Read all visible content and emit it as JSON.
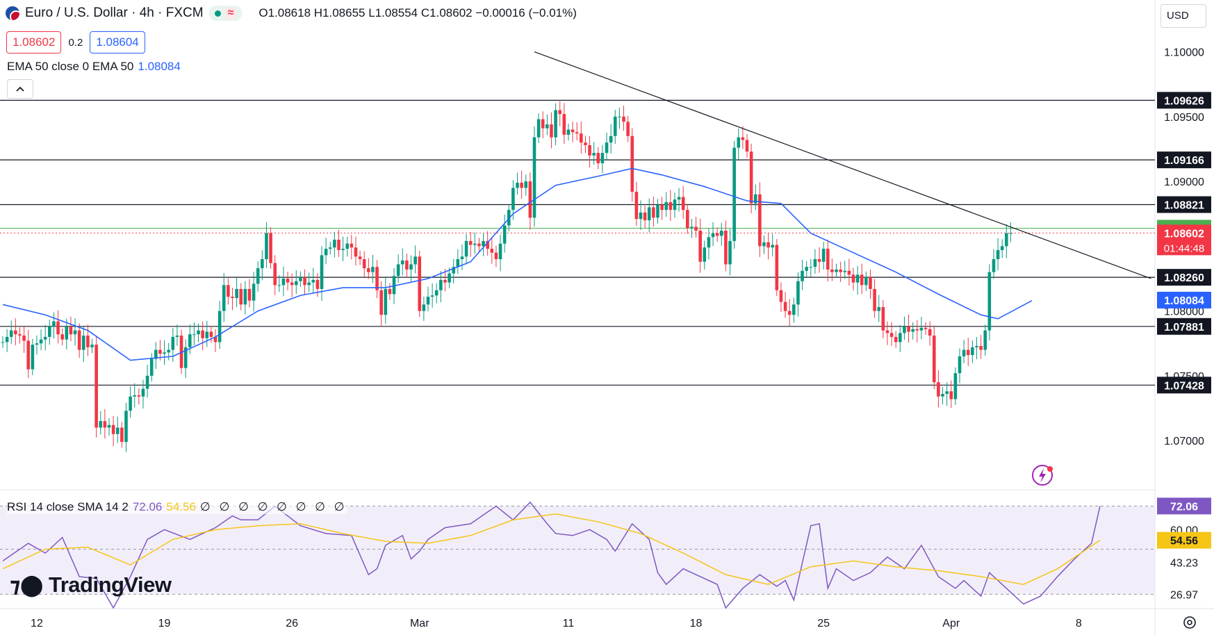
{
  "header": {
    "symbol": "Euro / U.S. Dollar · 4h · FXCM",
    "open": "O1.08618",
    "high": "H1.08655",
    "low": "L1.08554",
    "close": "C1.08602",
    "change": "−0.00016 (−0.01%)"
  },
  "quotes": {
    "sell": "1.08602",
    "spread": "0.2",
    "buy": "1.08604"
  },
  "ema_legend": {
    "label": "EMA 50 close 0 EMA 50",
    "value": "1.08084"
  },
  "currency": "USD",
  "rsi_legend": {
    "label": "RSI 14 close SMA 14 2",
    "rsi": "72.06",
    "sma": "54.56",
    "extra": "∅ ∅ ∅ ∅ ∅ ∅ ∅ ∅"
  },
  "brand": "TradingView",
  "colors": {
    "up": "#089981",
    "down": "#f23645",
    "ema": "#2962ff",
    "rsi": "#7e57c2",
    "rsi_sma": "#f5c518"
  },
  "chart_data": {
    "type": "candlestick",
    "ylim": [
      1.0662,
      1.104
    ],
    "price_ticks": [
      "1.10000",
      "1.09500",
      "1.09000",
      "1.08500",
      "1.08000",
      "1.07500",
      "1.07000"
    ],
    "x_ticks": [
      {
        "label": "12",
        "i": 8
      },
      {
        "label": "19",
        "i": 38
      },
      {
        "label": "26",
        "i": 68
      },
      {
        "label": "Mar",
        "i": 98
      },
      {
        "label": "11",
        "i": 133
      },
      {
        "label": "18",
        "i": 163
      },
      {
        "label": "25",
        "i": 193
      },
      {
        "label": "Apr",
        "i": 223
      },
      {
        "label": "8",
        "i": 253
      }
    ],
    "closes": [
      1.0776,
      1.078,
      1.0785,
      1.0782,
      1.0781,
      1.0777,
      1.0755,
      1.0774,
      1.0775,
      1.0778,
      1.078,
      1.0788,
      1.0792,
      1.0782,
      1.0778,
      1.0788,
      1.0782,
      1.0785,
      1.077,
      1.0781,
      1.0772,
      1.0774,
      1.071,
      1.0715,
      1.071,
      1.0712,
      1.0705,
      1.071,
      1.0699,
      1.0723,
      1.0734,
      1.0735,
      1.0734,
      1.074,
      1.075,
      1.0763,
      1.077,
      1.0767,
      1.0768,
      1.077,
      1.078,
      1.0781,
      1.0756,
      1.0772,
      1.0782,
      1.0782,
      1.0785,
      1.0779,
      1.0784,
      1.078,
      1.0776,
      1.08,
      1.082,
      1.0811,
      1.081,
      1.0817,
      1.0805,
      1.0817,
      1.0808,
      1.0821,
      1.0833,
      1.084,
      1.086,
      1.0837,
      1.082,
      1.082,
      1.0825,
      1.0822,
      1.082,
      1.0823,
      1.0826,
      1.082,
      1.0822,
      1.0824,
      1.0817,
      1.0843,
      1.0848,
      1.0849,
      1.0855,
      1.0847,
      1.0848,
      1.0852,
      1.0849,
      1.0842,
      1.084,
      1.0833,
      1.083,
      1.0834,
      1.0816,
      1.0797,
      1.0817,
      1.0813,
      1.0827,
      1.0836,
      1.0839,
      1.0832,
      1.0836,
      1.0842,
      1.08,
      1.0805,
      1.0811,
      1.0812,
      1.0816,
      1.0824,
      1.0822,
      1.0829,
      1.0834,
      1.084,
      1.0842,
      1.0854,
      1.0851,
      1.0852,
      1.085,
      1.0854,
      1.0848,
      1.0845,
      1.084,
      1.0852,
      1.0866,
      1.0878,
      1.0895,
      1.0899,
      1.0895,
      1.09,
      1.0872,
      1.0934,
      1.0948,
      1.0941,
      1.0944,
      1.0934,
      1.0955,
      1.0952,
      1.0936,
      1.094,
      1.0938,
      1.0937,
      1.093,
      1.0928,
      1.092,
      1.0922,
      1.0914,
      1.0922,
      1.093,
      1.0935,
      1.095,
      1.095,
      1.0946,
      1.0935,
      1.0892,
      1.0871,
      1.0876,
      1.087,
      1.088,
      1.0872,
      1.0882,
      1.0878,
      1.0884,
      1.0878,
      1.0886,
      1.0888,
      1.0878,
      1.0864,
      1.0865,
      1.0862,
      1.0838,
      1.0849,
      1.0857,
      1.086,
      1.0858,
      1.0862,
      1.0836,
      1.0854,
      1.0926,
      1.0934,
      1.0932,
      1.0923,
      1.0883,
      1.089,
      1.085,
      1.0853,
      1.0849,
      1.0851,
      1.0816,
      1.0807,
      1.08,
      1.0797,
      1.0805,
      1.0823,
      1.0831,
      1.0834,
      1.0834,
      1.084,
      1.0838,
      1.0848,
      1.0832,
      1.083,
      1.0832,
      1.083,
      1.0831,
      1.0828,
      1.0822,
      1.0828,
      1.082,
      1.0826,
      1.0817,
      1.08,
      1.0803,
      1.0785,
      1.0783,
      1.078,
      1.0776,
      1.0783,
      1.0788,
      1.0784,
      1.0786,
      1.0785,
      1.0787,
      1.0786,
      1.0781,
      1.0745,
      1.0734,
      1.0736,
      1.0738,
      1.0732,
      1.0752,
      1.0765,
      1.077,
      1.0766,
      1.0772,
      1.0773,
      1.077,
      1.0785,
      1.083,
      1.084,
      1.0847,
      1.085,
      1.086,
      1.086
    ],
    "ema": [
      {
        "i": 0,
        "v": 1.0805
      },
      {
        "i": 10,
        "v": 1.0797
      },
      {
        "i": 20,
        "v": 1.0785
      },
      {
        "i": 30,
        "v": 1.0762
      },
      {
        "i": 40,
        "v": 1.0765
      },
      {
        "i": 50,
        "v": 1.078
      },
      {
        "i": 60,
        "v": 1.08
      },
      {
        "i": 70,
        "v": 1.0812
      },
      {
        "i": 80,
        "v": 1.0818
      },
      {
        "i": 90,
        "v": 1.0818
      },
      {
        "i": 100,
        "v": 1.0825
      },
      {
        "i": 110,
        "v": 1.0838
      },
      {
        "i": 120,
        "v": 1.0875
      },
      {
        "i": 130,
        "v": 1.0897
      },
      {
        "i": 140,
        "v": 1.0904
      },
      {
        "i": 148,
        "v": 1.091
      },
      {
        "i": 155,
        "v": 1.0905
      },
      {
        "i": 165,
        "v": 1.0896
      },
      {
        "i": 175,
        "v": 1.0885
      },
      {
        "i": 183,
        "v": 1.0883
      },
      {
        "i": 190,
        "v": 1.086
      },
      {
        "i": 200,
        "v": 1.0845
      },
      {
        "i": 210,
        "v": 1.083
      },
      {
        "i": 220,
        "v": 1.0813
      },
      {
        "i": 230,
        "v": 1.0797
      },
      {
        "i": 234,
        "v": 1.0794
      },
      {
        "i": 242,
        "v": 1.0808
      }
    ],
    "horizontal_levels": [
      "1.09626",
      "1.09166",
      "1.08821",
      "1.08260",
      "1.07881",
      "1.07428"
    ],
    "green_level": "1.08639",
    "last_price": "1.08602",
    "countdown": "01:44:48",
    "ema_last": "1.08084",
    "trendline": [
      {
        "i": 125,
        "v": 1.1
      },
      {
        "i": 270,
        "v": 1.0825
      }
    ],
    "rsi": {
      "ylim": [
        20,
        80
      ],
      "ticks": [
        "60.00",
        "43.23",
        "26.97"
      ],
      "band": [
        26.97,
        72.06
      ],
      "mid": 50.0,
      "last_rsi": "72.06",
      "last_sma": "54.56",
      "rsi_values": [
        [
          0,
          44
        ],
        [
          6,
          53
        ],
        [
          10,
          48
        ],
        [
          14,
          56
        ],
        [
          18,
          36
        ],
        [
          22,
          35
        ],
        [
          26,
          20
        ],
        [
          30,
          36
        ],
        [
          34,
          55
        ],
        [
          38,
          60
        ],
        [
          44,
          55
        ],
        [
          50,
          61
        ],
        [
          54,
          67
        ],
        [
          56,
          65
        ],
        [
          60,
          65
        ],
        [
          64,
          72
        ],
        [
          70,
          62
        ],
        [
          76,
          58
        ],
        [
          82,
          57
        ],
        [
          86,
          37
        ],
        [
          88,
          40
        ],
        [
          90,
          52
        ],
        [
          94,
          57
        ],
        [
          96,
          45
        ],
        [
          98,
          49
        ],
        [
          100,
          55
        ],
        [
          104,
          61
        ],
        [
          110,
          63
        ],
        [
          116,
          72
        ],
        [
          120,
          65
        ],
        [
          124,
          74
        ],
        [
          128,
          63
        ],
        [
          130,
          58
        ],
        [
          134,
          57
        ],
        [
          138,
          60
        ],
        [
          142,
          55
        ],
        [
          144,
          49
        ],
        [
          148,
          63
        ],
        [
          152,
          55
        ],
        [
          154,
          38
        ],
        [
          156,
          32
        ],
        [
          160,
          40
        ],
        [
          164,
          36
        ],
        [
          168,
          32
        ],
        [
          170,
          20
        ],
        [
          174,
          30
        ],
        [
          178,
          37
        ],
        [
          182,
          31
        ],
        [
          184,
          34
        ],
        [
          186,
          24
        ],
        [
          190,
          62
        ],
        [
          192,
          63
        ],
        [
          194,
          30
        ],
        [
          196,
          40
        ],
        [
          200,
          34
        ],
        [
          204,
          38
        ],
        [
          208,
          46
        ],
        [
          212,
          40
        ],
        [
          216,
          52
        ],
        [
          220,
          36
        ],
        [
          224,
          30
        ],
        [
          226,
          34
        ],
        [
          230,
          26
        ],
        [
          232,
          38
        ],
        [
          236,
          30
        ],
        [
          240,
          22
        ],
        [
          244,
          26
        ],
        [
          248,
          36
        ],
        [
          252,
          45
        ],
        [
          256,
          53
        ],
        [
          258,
          72
        ]
      ],
      "sma_values": [
        [
          0,
          40
        ],
        [
          10,
          50
        ],
        [
          20,
          51
        ],
        [
          30,
          42
        ],
        [
          40,
          55
        ],
        [
          50,
          60
        ],
        [
          60,
          62
        ],
        [
          70,
          63
        ],
        [
          80,
          58
        ],
        [
          90,
          54
        ],
        [
          100,
          53
        ],
        [
          110,
          57
        ],
        [
          120,
          65
        ],
        [
          130,
          68
        ],
        [
          140,
          64
        ],
        [
          150,
          58
        ],
        [
          160,
          48
        ],
        [
          170,
          37
        ],
        [
          180,
          32
        ],
        [
          190,
          41
        ],
        [
          200,
          44
        ],
        [
          210,
          41
        ],
        [
          220,
          39
        ],
        [
          230,
          36
        ],
        [
          240,
          32
        ],
        [
          248,
          40
        ],
        [
          258,
          54.56
        ]
      ]
    }
  }
}
